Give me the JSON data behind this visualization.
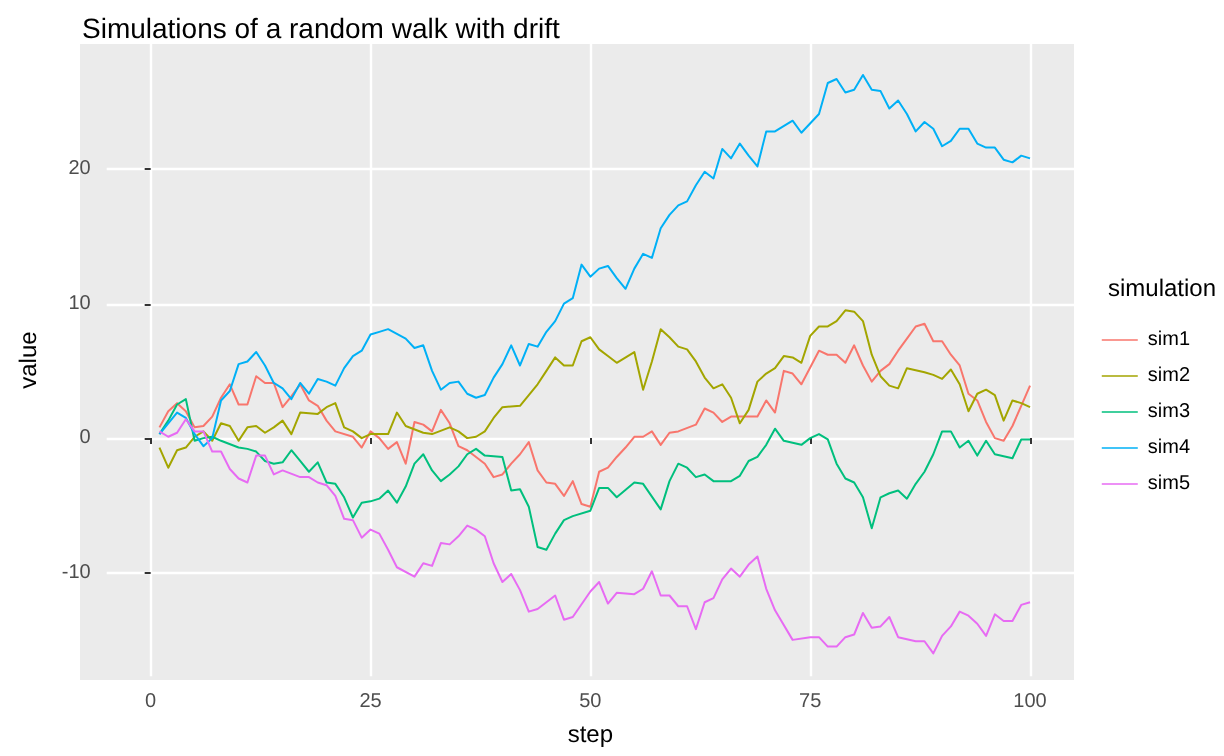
{
  "chart_data": {
    "type": "line",
    "title": "Simulations of a random walk with drift",
    "xlabel": "step",
    "ylabel": "value",
    "legend_title": "simulation",
    "legend": "right",
    "grid": true,
    "marker": "none",
    "line_style": "solid",
    "xlim": [
      -5,
      105
    ],
    "xticks": [
      0,
      25,
      50,
      75,
      100
    ],
    "ylim": [
      -17.7,
      29.3
    ],
    "yticks": [
      -10,
      0,
      10,
      20
    ],
    "series": [
      {
        "name": "sim1",
        "color": "#f8766d",
        "x": [
          1,
          2,
          3,
          4,
          5,
          6,
          7,
          8,
          9,
          10,
          11,
          12,
          13,
          14,
          15,
          16,
          17,
          18,
          19,
          20,
          21,
          23,
          24,
          25,
          26,
          27,
          28,
          29,
          30,
          31,
          32,
          33,
          34,
          35,
          36,
          38,
          39,
          40,
          41,
          42,
          43,
          44,
          45,
          46,
          47,
          48,
          49,
          50,
          51,
          52,
          53,
          54,
          55,
          56,
          57,
          58,
          59,
          60,
          62,
          63,
          64,
          65,
          66,
          67,
          69,
          70,
          71,
          72,
          73,
          74,
          76,
          77,
          78,
          79,
          80,
          81,
          82,
          83,
          84,
          85,
          86,
          87,
          88,
          89,
          90,
          91,
          92,
          93,
          94,
          95,
          96,
          97,
          98,
          99,
          100
        ],
        "values": [
          0.8,
          2,
          2.6,
          2,
          0.8,
          0.9,
          1.6,
          3,
          4,
          2.5,
          2.5,
          4.6,
          4.1,
          4.1,
          2.3,
          3.1,
          4,
          2.8,
          2.4,
          1.3,
          0.5,
          0.1,
          -0.7,
          0.5,
          0,
          -0.8,
          -0.3,
          -1.9,
          1.2,
          1,
          0.5,
          2.1,
          1.1,
          -0.6,
          -0.9,
          -1.9,
          -2.9,
          -2.7,
          -1.9,
          -1.2,
          -0.3,
          -2.4,
          -3.3,
          -3.4,
          -4.3,
          -3.2,
          -4.9,
          -5.1,
          -2.5,
          -2.2,
          -1.4,
          -0.7,
          0.1,
          0.1,
          0.5,
          -0.5,
          0.4,
          0.5,
          1,
          2.2,
          1.9,
          1.2,
          1.6,
          1.6,
          1.6,
          2.8,
          1.9,
          5,
          4.8,
          4,
          6.5,
          6.2,
          6.2,
          5.6,
          6.9,
          5.4,
          4.2,
          5,
          5.5,
          6.5,
          7.4,
          8.3,
          8.5,
          7.2,
          7.2,
          6.2,
          5.4,
          3.3,
          2.8,
          1.2,
          0,
          -0.2,
          0.9,
          2.4,
          3.9
        ]
      },
      {
        "name": "sim2",
        "color": "#a3a500",
        "x": [
          1,
          2,
          3,
          4,
          5,
          6,
          7,
          8,
          9,
          10,
          11,
          12,
          13,
          14,
          15,
          16,
          17,
          19,
          20,
          21,
          22,
          23,
          24,
          25,
          27,
          28,
          29,
          31,
          32,
          34,
          35,
          36,
          37,
          38,
          39,
          40,
          42,
          43,
          44,
          45,
          46,
          47,
          48,
          49,
          50,
          51,
          52,
          53,
          55,
          56,
          57,
          58,
          59,
          60,
          61,
          62,
          63,
          64,
          65,
          66,
          67,
          68,
          69,
          70,
          71,
          72,
          73,
          74,
          75,
          76,
          77,
          78,
          79,
          80,
          81,
          82,
          83,
          84,
          85,
          86,
          88,
          89,
          90,
          91,
          92,
          93,
          94,
          95,
          96,
          97,
          98,
          99,
          100
        ],
        "values": [
          -0.7,
          -2.2,
          -0.9,
          -0.7,
          0.1,
          0.5,
          -0.2,
          1.1,
          0.9,
          -0.2,
          0.8,
          0.9,
          0.4,
          0.8,
          1.3,
          0.3,
          1.9,
          1.8,
          2.3,
          2.6,
          0.8,
          0.5,
          0,
          0.3,
          0.3,
          1.9,
          0.9,
          0.4,
          0.3,
          0.8,
          0.5,
          0,
          0.1,
          0.5,
          1.5,
          2.3,
          2.4,
          3.2,
          4,
          5,
          6,
          5.4,
          5.4,
          7.2,
          7.5,
          6.6,
          6.1,
          5.6,
          6.4,
          3.6,
          5.7,
          8.1,
          7.5,
          6.8,
          6.6,
          5.7,
          4.5,
          3.7,
          4,
          3,
          1.1,
          2.1,
          4.2,
          4.8,
          5.2,
          6.1,
          6,
          5.6,
          7.6,
          8.3,
          8.3,
          8.7,
          9.5,
          9.4,
          8.7,
          6.2,
          4.6,
          3.9,
          3.7,
          5.2,
          4.9,
          4.7,
          4.4,
          5.1,
          4,
          2,
          3.3,
          3.6,
          3.2,
          1.3,
          2.8,
          2.6,
          2.3
        ]
      },
      {
        "name": "sim3",
        "color": "#00bf7d",
        "x": [
          1,
          2,
          3,
          4,
          5,
          6,
          7,
          8,
          10,
          11,
          12,
          13,
          14,
          15,
          16,
          17,
          18,
          19,
          20,
          21,
          22,
          23,
          24,
          25,
          26,
          27,
          28,
          29,
          30,
          31,
          32,
          33,
          34,
          35,
          36,
          37,
          38,
          40,
          41,
          42,
          43,
          44,
          45,
          46,
          47,
          48,
          50,
          51,
          52,
          53,
          55,
          56,
          58,
          59,
          60,
          61,
          62,
          63,
          64,
          66,
          67,
          68,
          69,
          70,
          71,
          72,
          74,
          75,
          76,
          77,
          78,
          79,
          80,
          81,
          82,
          83,
          84,
          85,
          86,
          87,
          88,
          89,
          90,
          91,
          92,
          93,
          94,
          95,
          96,
          98,
          99,
          100
        ],
        "values": [
          0.3,
          1.3,
          2.5,
          2.9,
          -0.2,
          0,
          0.1,
          -0.2,
          -0.7,
          -0.8,
          -1,
          -1.7,
          -1.9,
          -1.8,
          -0.9,
          -1.7,
          -2.5,
          -1.8,
          -3.3,
          -3.4,
          -4.4,
          -5.9,
          -4.8,
          -4.7,
          -4.5,
          -3.9,
          -4.8,
          -3.6,
          -1.9,
          -1.2,
          -2.4,
          -3.2,
          -2.7,
          -2.1,
          -1.2,
          -0.8,
          -1.3,
          -1.4,
          -3.9,
          -3.8,
          -5.1,
          -8.1,
          -8.3,
          -7.1,
          -6.1,
          -5.8,
          -5.4,
          -3.7,
          -3.7,
          -4.4,
          -3.3,
          -3.4,
          -5.3,
          -3.2,
          -1.9,
          -2.2,
          -2.9,
          -2.7,
          -3.2,
          -3.2,
          -2.8,
          -1.7,
          -1.4,
          -0.5,
          0.7,
          -0.2,
          -0.5,
          0,
          0.3,
          -0.1,
          -1.9,
          -3,
          -3.3,
          -4.4,
          -6.7,
          -4.4,
          -4.1,
          -3.9,
          -4.5,
          -3.4,
          -2.5,
          -1.2,
          0.5,
          0.5,
          -0.7,
          -0.2,
          -1.3,
          -0.2,
          -1.2,
          -1.5,
          -0.1,
          -0.1
        ]
      },
      {
        "name": "sim4",
        "color": "#00b0f6",
        "x": [
          1,
          3,
          4,
          5,
          6,
          7,
          8,
          9,
          10,
          11,
          12,
          13,
          14,
          15,
          16,
          17,
          18,
          19,
          20,
          21,
          22,
          23,
          24,
          25,
          26,
          27,
          29,
          30,
          31,
          32,
          33,
          34,
          35,
          36,
          37,
          38,
          39,
          40,
          41,
          42,
          43,
          44,
          45,
          46,
          47,
          48,
          49,
          50,
          51,
          52,
          53,
          54,
          55,
          56,
          57,
          58,
          59,
          60,
          61,
          62,
          63,
          64,
          65,
          66,
          67,
          68,
          69,
          70,
          71,
          73,
          74,
          76,
          77,
          78,
          79,
          80,
          81,
          82,
          83,
          84,
          85,
          86,
          87,
          88,
          89,
          90,
          91,
          92,
          93,
          94,
          95,
          96,
          97,
          98,
          99,
          100
        ],
        "values": [
          0.3,
          1.9,
          1.5,
          0.3,
          -0.6,
          0,
          2.8,
          3.5,
          5.5,
          5.7,
          6.4,
          5.4,
          4.1,
          3.7,
          2.9,
          4.1,
          3.3,
          4.4,
          4.2,
          3.9,
          5.2,
          6.1,
          6.5,
          7.7,
          7.9,
          8.1,
          7.4,
          6.7,
          6.9,
          5,
          3.6,
          4.1,
          4.2,
          3.3,
          3,
          3.2,
          4.5,
          5.5,
          6.9,
          5.4,
          7,
          6.8,
          7.9,
          8.7,
          10,
          10.4,
          12.9,
          12,
          12.6,
          12.8,
          11.9,
          11.1,
          12.6,
          13.7,
          13.4,
          15.6,
          16.6,
          17.3,
          17.6,
          18.8,
          19.8,
          19.3,
          21.5,
          20.8,
          21.9,
          21,
          20.2,
          22.8,
          22.8,
          23.6,
          22.7,
          24.1,
          26.4,
          26.7,
          25.7,
          25.9,
          27,
          25.9,
          25.8,
          24.5,
          25.1,
          24.1,
          22.8,
          23.5,
          23,
          21.7,
          22.1,
          23,
          23,
          21.9,
          21.6,
          21.6,
          20.7,
          20.5,
          21,
          20.8
        ]
      },
      {
        "name": "sim5",
        "color": "#e76bf3",
        "x": [
          1,
          2,
          3,
          4,
          5,
          6,
          7,
          8,
          9,
          10,
          11,
          12,
          13,
          14,
          15,
          17,
          18,
          19,
          20,
          21,
          22,
          23,
          24,
          25,
          26,
          27,
          28,
          30,
          31,
          32,
          33,
          34,
          35,
          36,
          37,
          38,
          39,
          40,
          41,
          42,
          43,
          44,
          46,
          47,
          48,
          50,
          51,
          52,
          53,
          55,
          56,
          57,
          58,
          59,
          60,
          61,
          62,
          63,
          64,
          65,
          66,
          67,
          68,
          69,
          70,
          71,
          73,
          75,
          76,
          77,
          78,
          79,
          80,
          81,
          82,
          83,
          84,
          85,
          87,
          88,
          89,
          90,
          91,
          92,
          93,
          94,
          95,
          96,
          97,
          98,
          99,
          100
        ],
        "values": [
          0.5,
          0.1,
          0.4,
          1.4,
          0.5,
          0.5,
          -1,
          -1,
          -2.3,
          -3,
          -3.3,
          -1.3,
          -1.3,
          -2.7,
          -2.4,
          -2.9,
          -2.9,
          -3.3,
          -3.5,
          -4.3,
          -6,
          -6.1,
          -7.4,
          -6.8,
          -7.1,
          -8.3,
          -9.6,
          -10.3,
          -9.3,
          -9.5,
          -7.8,
          -7.9,
          -7.3,
          -6.5,
          -6.8,
          -7.3,
          -9.3,
          -10.7,
          -10.1,
          -11.3,
          -12.9,
          -12.7,
          -11.7,
          -13.5,
          -13.3,
          -11.4,
          -10.7,
          -12.3,
          -11.5,
          -11.6,
          -11.2,
          -9.9,
          -11.7,
          -11.7,
          -12.5,
          -12.5,
          -14.2,
          -12.2,
          -11.9,
          -10.5,
          -9.7,
          -10.3,
          -9.4,
          -8.8,
          -11.2,
          -12.8,
          -15,
          -14.8,
          -14.8,
          -15.5,
          -15.5,
          -14.8,
          -14.6,
          -13,
          -14.1,
          -14,
          -13.3,
          -14.8,
          -15.1,
          -15.1,
          -16,
          -14.7,
          -14,
          -12.9,
          -13.2,
          -13.8,
          -14.7,
          -13.1,
          -13.6,
          -13.6,
          -12.4,
          -12.2
        ]
      }
    ]
  }
}
